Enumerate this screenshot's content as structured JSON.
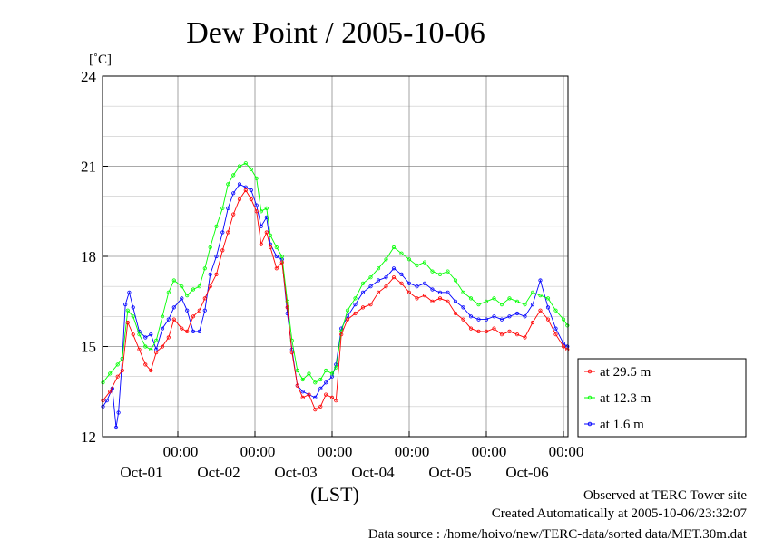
{
  "page": {
    "title": "Dew Point / 2005-10-06",
    "unit": "[˚C]",
    "xlabel": "(LST)",
    "footer": [
      "Observed at TERC Tower site",
      "Created Automatically at 2005-10-06/23:32:07",
      "Data source : /home/hoivo/new/TERC-data/sorted  data/MET.30m.dat"
    ]
  },
  "chart_data": {
    "type": "line",
    "title": "Dew Point / 2005-10-06",
    "xlabel": "(LST)",
    "ylabel": "[˚C]",
    "ylim": [
      12,
      24
    ],
    "yticks": [
      12,
      15,
      18,
      21,
      24
    ],
    "xlim": [
      -0.97,
      5.0
    ],
    "xticks": [
      {
        "x": 0,
        "time": "00:00",
        "date": "Oct-01"
      },
      {
        "x": 1,
        "time": "00:00",
        "date": "Oct-02"
      },
      {
        "x": 2,
        "time": "00:00",
        "date": "Oct-03"
      },
      {
        "x": 3,
        "time": "00:00",
        "date": "Oct-04"
      },
      {
        "x": 4,
        "time": "00:00",
        "date": "Oct-05"
      },
      {
        "x": 5,
        "time": "00:00",
        "date": "Oct-06"
      }
    ],
    "grid": true,
    "legend_position": "right",
    "series": [
      {
        "name": "at 29.5 m",
        "color": "#ff0000",
        "points": [
          [
            -0.97,
            13.2
          ],
          [
            -0.88,
            13.5
          ],
          [
            -0.78,
            14.0
          ],
          [
            -0.72,
            14.2
          ],
          [
            -0.65,
            15.8
          ],
          [
            -0.58,
            15.4
          ],
          [
            -0.5,
            14.9
          ],
          [
            -0.42,
            14.4
          ],
          [
            -0.35,
            14.2
          ],
          [
            -0.28,
            14.8
          ],
          [
            -0.2,
            15.0
          ],
          [
            -0.12,
            15.3
          ],
          [
            -0.05,
            15.9
          ],
          [
            0.05,
            15.6
          ],
          [
            0.12,
            15.5
          ],
          [
            0.2,
            16.0
          ],
          [
            0.28,
            16.2
          ],
          [
            0.35,
            16.6
          ],
          [
            0.42,
            17.0
          ],
          [
            0.5,
            17.4
          ],
          [
            0.58,
            18.2
          ],
          [
            0.65,
            18.8
          ],
          [
            0.72,
            19.4
          ],
          [
            0.8,
            19.9
          ],
          [
            0.88,
            20.2
          ],
          [
            0.95,
            19.9
          ],
          [
            1.02,
            19.5
          ],
          [
            1.08,
            18.4
          ],
          [
            1.15,
            18.8
          ],
          [
            1.2,
            18.3
          ],
          [
            1.28,
            17.6
          ],
          [
            1.35,
            17.8
          ],
          [
            1.42,
            16.3
          ],
          [
            1.48,
            14.8
          ],
          [
            1.55,
            13.7
          ],
          [
            1.62,
            13.3
          ],
          [
            1.7,
            13.4
          ],
          [
            1.78,
            12.9
          ],
          [
            1.85,
            13.0
          ],
          [
            1.92,
            13.4
          ],
          [
            2.0,
            13.3
          ],
          [
            2.05,
            13.2
          ],
          [
            2.12,
            15.4
          ],
          [
            2.2,
            15.9
          ],
          [
            2.3,
            16.1
          ],
          [
            2.4,
            16.3
          ],
          [
            2.5,
            16.4
          ],
          [
            2.6,
            16.8
          ],
          [
            2.7,
            17.0
          ],
          [
            2.8,
            17.3
          ],
          [
            2.9,
            17.1
          ],
          [
            3.0,
            16.8
          ],
          [
            3.1,
            16.6
          ],
          [
            3.2,
            16.7
          ],
          [
            3.3,
            16.5
          ],
          [
            3.4,
            16.6
          ],
          [
            3.5,
            16.5
          ],
          [
            3.6,
            16.1
          ],
          [
            3.7,
            15.9
          ],
          [
            3.8,
            15.6
          ],
          [
            3.9,
            15.5
          ],
          [
            4.0,
            15.5
          ],
          [
            4.1,
            15.6
          ],
          [
            4.2,
            15.4
          ],
          [
            4.3,
            15.5
          ],
          [
            4.4,
            15.4
          ],
          [
            4.5,
            15.3
          ],
          [
            4.6,
            15.8
          ],
          [
            4.7,
            16.2
          ],
          [
            4.8,
            15.9
          ],
          [
            4.9,
            15.4
          ],
          [
            5.0,
            15.0
          ],
          [
            5.05,
            14.9
          ]
        ]
      },
      {
        "name": "at 12.3 m",
        "color": "#00ff00",
        "points": [
          [
            -0.97,
            13.8
          ],
          [
            -0.88,
            14.1
          ],
          [
            -0.78,
            14.4
          ],
          [
            -0.72,
            14.6
          ],
          [
            -0.65,
            16.2
          ],
          [
            -0.58,
            16.0
          ],
          [
            -0.5,
            15.4
          ],
          [
            -0.42,
            15.0
          ],
          [
            -0.35,
            14.9
          ],
          [
            -0.28,
            15.2
          ],
          [
            -0.2,
            16.0
          ],
          [
            -0.12,
            16.8
          ],
          [
            -0.05,
            17.2
          ],
          [
            0.05,
            17.0
          ],
          [
            0.12,
            16.7
          ],
          [
            0.2,
            16.9
          ],
          [
            0.28,
            17.0
          ],
          [
            0.35,
            17.6
          ],
          [
            0.42,
            18.3
          ],
          [
            0.5,
            19.0
          ],
          [
            0.58,
            19.6
          ],
          [
            0.65,
            20.4
          ],
          [
            0.72,
            20.7
          ],
          [
            0.8,
            21.0
          ],
          [
            0.88,
            21.1
          ],
          [
            0.95,
            20.9
          ],
          [
            1.02,
            20.6
          ],
          [
            1.08,
            19.5
          ],
          [
            1.15,
            19.6
          ],
          [
            1.2,
            18.7
          ],
          [
            1.28,
            18.3
          ],
          [
            1.35,
            18.0
          ],
          [
            1.42,
            16.5
          ],
          [
            1.48,
            15.2
          ],
          [
            1.55,
            14.2
          ],
          [
            1.62,
            13.9
          ],
          [
            1.7,
            14.1
          ],
          [
            1.78,
            13.8
          ],
          [
            1.85,
            13.9
          ],
          [
            1.92,
            14.2
          ],
          [
            2.0,
            14.1
          ],
          [
            2.05,
            14.3
          ],
          [
            2.12,
            15.5
          ],
          [
            2.2,
            16.2
          ],
          [
            2.3,
            16.6
          ],
          [
            2.4,
            17.1
          ],
          [
            2.5,
            17.3
          ],
          [
            2.6,
            17.6
          ],
          [
            2.7,
            17.9
          ],
          [
            2.8,
            18.3
          ],
          [
            2.9,
            18.1
          ],
          [
            3.0,
            17.9
          ],
          [
            3.1,
            17.7
          ],
          [
            3.2,
            17.8
          ],
          [
            3.3,
            17.5
          ],
          [
            3.4,
            17.4
          ],
          [
            3.5,
            17.5
          ],
          [
            3.6,
            17.2
          ],
          [
            3.7,
            16.8
          ],
          [
            3.8,
            16.6
          ],
          [
            3.9,
            16.4
          ],
          [
            4.0,
            16.5
          ],
          [
            4.1,
            16.6
          ],
          [
            4.2,
            16.4
          ],
          [
            4.3,
            16.6
          ],
          [
            4.4,
            16.5
          ],
          [
            4.5,
            16.4
          ],
          [
            4.6,
            16.8
          ],
          [
            4.7,
            16.7
          ],
          [
            4.8,
            16.6
          ],
          [
            4.9,
            16.2
          ],
          [
            5.0,
            15.9
          ],
          [
            5.05,
            15.7
          ]
        ]
      },
      {
        "name": "at 1.6 m",
        "color": "#0000ff",
        "points": [
          [
            -0.97,
            13.0
          ],
          [
            -0.92,
            13.2
          ],
          [
            -0.85,
            13.6
          ],
          [
            -0.8,
            12.3
          ],
          [
            -0.77,
            12.8
          ],
          [
            -0.72,
            14.6
          ],
          [
            -0.68,
            16.4
          ],
          [
            -0.63,
            16.8
          ],
          [
            -0.58,
            16.3
          ],
          [
            -0.5,
            15.5
          ],
          [
            -0.42,
            15.3
          ],
          [
            -0.35,
            15.4
          ],
          [
            -0.28,
            14.9
          ],
          [
            -0.2,
            15.6
          ],
          [
            -0.12,
            15.9
          ],
          [
            -0.05,
            16.3
          ],
          [
            0.05,
            16.6
          ],
          [
            0.12,
            16.2
          ],
          [
            0.2,
            15.5
          ],
          [
            0.28,
            15.5
          ],
          [
            0.35,
            16.2
          ],
          [
            0.42,
            17.4
          ],
          [
            0.5,
            18.0
          ],
          [
            0.58,
            18.8
          ],
          [
            0.65,
            19.6
          ],
          [
            0.72,
            20.1
          ],
          [
            0.8,
            20.4
          ],
          [
            0.88,
            20.3
          ],
          [
            0.95,
            20.2
          ],
          [
            1.02,
            19.7
          ],
          [
            1.08,
            19.0
          ],
          [
            1.15,
            19.3
          ],
          [
            1.2,
            18.4
          ],
          [
            1.28,
            18.0
          ],
          [
            1.35,
            17.9
          ],
          [
            1.42,
            16.1
          ],
          [
            1.48,
            14.9
          ],
          [
            1.55,
            13.7
          ],
          [
            1.62,
            13.5
          ],
          [
            1.7,
            13.4
          ],
          [
            1.78,
            13.3
          ],
          [
            1.85,
            13.6
          ],
          [
            1.92,
            13.8
          ],
          [
            2.0,
            14.0
          ],
          [
            2.05,
            14.4
          ],
          [
            2.12,
            15.6
          ],
          [
            2.2,
            16.0
          ],
          [
            2.3,
            16.4
          ],
          [
            2.4,
            16.8
          ],
          [
            2.5,
            17.0
          ],
          [
            2.6,
            17.2
          ],
          [
            2.7,
            17.3
          ],
          [
            2.8,
            17.6
          ],
          [
            2.9,
            17.4
          ],
          [
            3.0,
            17.1
          ],
          [
            3.1,
            17.0
          ],
          [
            3.2,
            17.1
          ],
          [
            3.3,
            16.9
          ],
          [
            3.4,
            16.8
          ],
          [
            3.5,
            16.8
          ],
          [
            3.6,
            16.5
          ],
          [
            3.7,
            16.3
          ],
          [
            3.8,
            16.0
          ],
          [
            3.9,
            15.9
          ],
          [
            4.0,
            15.9
          ],
          [
            4.1,
            16.0
          ],
          [
            4.2,
            15.9
          ],
          [
            4.3,
            16.0
          ],
          [
            4.4,
            16.1
          ],
          [
            4.5,
            16.0
          ],
          [
            4.6,
            16.4
          ],
          [
            4.7,
            17.2
          ],
          [
            4.8,
            16.3
          ],
          [
            4.9,
            15.6
          ],
          [
            5.0,
            15.1
          ],
          [
            5.05,
            15.0
          ]
        ]
      }
    ]
  }
}
